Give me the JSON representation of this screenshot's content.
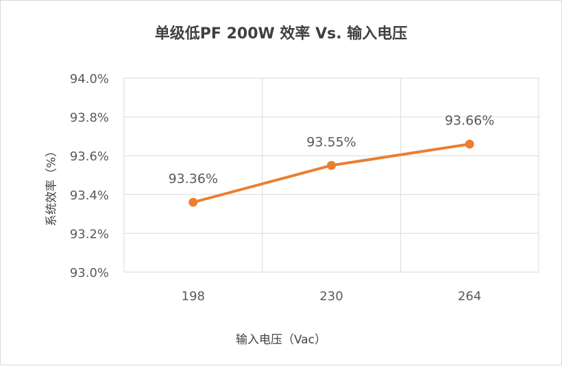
{
  "chart_data": {
    "type": "line",
    "title": "单级低PF 200W 效率 Vs. 输入电压",
    "xlabel": "输入电压（Vac）",
    "ylabel": "系统效率（%）",
    "categories": [
      "198",
      "230",
      "264"
    ],
    "series": [
      {
        "values": [
          93.36,
          93.55,
          93.66
        ],
        "data_labels": [
          "93.36%",
          "93.55%",
          "93.66%"
        ],
        "color": "#ed7d31"
      }
    ],
    "ylim": [
      93.0,
      94.0
    ],
    "y_ticks": [
      93.0,
      93.2,
      93.4,
      93.6,
      93.8,
      94.0
    ],
    "y_tick_labels": [
      "93.0%",
      "93.2%",
      "93.4%",
      "93.6%",
      "93.8%",
      "94.0%"
    ],
    "grid": true,
    "grid_color": "#d9d9d9",
    "legend": "none"
  }
}
